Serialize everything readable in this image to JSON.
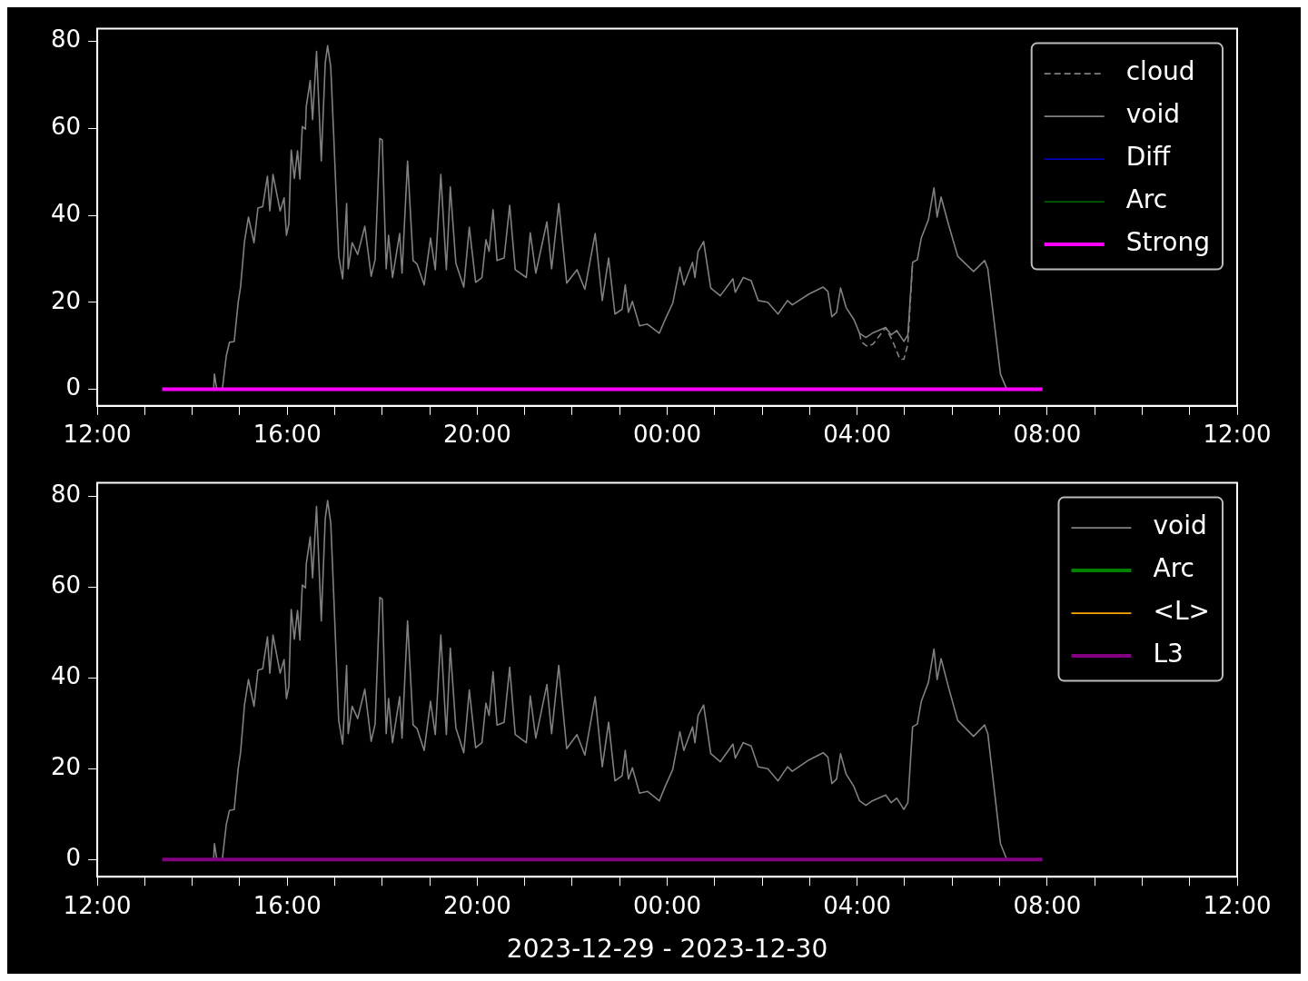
{
  "chart_data": [
    {
      "type": "line",
      "x": [
        "2023-12-29T14:27",
        "2023-12-29T14:28",
        "2023-12-29T14:31",
        "2023-12-29T14:38",
        "2023-12-29T14:43",
        "2023-12-29T14:47",
        "2023-12-29T14:53",
        "2023-12-29T14:58",
        "2023-12-29T15:01",
        "2023-12-29T15:06",
        "2023-12-29T15:11",
        "2023-12-29T15:18",
        "2023-12-29T15:23",
        "2023-12-29T15:29",
        "2023-12-29T15:35",
        "2023-12-29T15:38",
        "2023-12-29T15:42",
        "2023-12-29T15:51",
        "2023-12-29T15:56",
        "2023-12-29T15:59",
        "2023-12-29T16:02",
        "2023-12-29T16:05",
        "2023-12-29T16:09",
        "2023-12-29T16:13",
        "2023-12-29T16:16",
        "2023-12-29T16:19",
        "2023-12-29T16:23",
        "2023-12-29T16:24",
        "2023-12-29T16:29",
        "2023-12-29T16:32",
        "2023-12-29T16:37",
        "2023-12-29T16:43",
        "2023-12-29T16:48",
        "2023-12-29T16:51",
        "2023-12-29T16:55",
        "2023-12-29T16:59",
        "2023-12-29T17:05",
        "2023-12-29T17:10",
        "2023-12-29T17:15",
        "2023-12-29T17:17",
        "2023-12-29T17:22",
        "2023-12-29T17:29",
        "2023-12-29T17:38",
        "2023-12-29T17:46",
        "2023-12-29T17:51",
        "2023-12-29T17:57",
        "2023-12-29T18:00",
        "2023-12-29T18:05",
        "2023-12-29T18:08",
        "2023-12-29T18:13",
        "2023-12-29T18:22",
        "2023-12-29T18:25",
        "2023-12-29T18:32",
        "2023-12-29T18:39",
        "2023-12-29T18:44",
        "2023-12-29T18:53",
        "2023-12-29T19:01",
        "2023-12-29T19:07",
        "2023-12-29T19:14",
        "2023-12-29T19:21",
        "2023-12-29T19:26",
        "2023-12-29T19:33",
        "2023-12-29T19:43",
        "2023-12-29T19:50",
        "2023-12-29T19:58",
        "2023-12-29T20:06",
        "2023-12-29T20:11",
        "2023-12-29T20:15",
        "2023-12-29T20:20",
        "2023-12-29T20:25",
        "2023-12-29T20:34",
        "2023-12-29T20:41",
        "2023-12-29T20:48",
        "2023-12-29T21:02",
        "2023-12-29T21:07",
        "2023-12-29T21:14",
        "2023-12-29T21:28",
        "2023-12-29T21:34",
        "2023-12-29T21:43",
        "2023-12-29T21:53",
        "2023-12-29T22:06",
        "2023-12-29T22:16",
        "2023-12-29T22:29",
        "2023-12-29T22:38",
        "2023-12-29T22:46",
        "2023-12-29T22:54",
        "2023-12-29T23:03",
        "2023-12-29T23:07",
        "2023-12-29T23:11",
        "2023-12-29T23:16",
        "2023-12-29T23:25",
        "2023-12-29T23:35",
        "2023-12-29T23:50",
        "2023-12-29T23:58",
        "2023-12-30T00:07",
        "2023-12-30T00:16",
        "2023-12-30T00:21",
        "2023-12-30T00:32",
        "2023-12-30T00:35",
        "2023-12-30T00:39",
        "2023-12-30T00:46",
        "2023-12-30T00:55",
        "2023-12-30T01:07",
        "2023-12-30T01:23",
        "2023-12-30T01:26",
        "2023-12-30T01:36",
        "2023-12-30T01:46",
        "2023-12-30T01:55",
        "2023-12-30T02:07",
        "2023-12-30T02:20",
        "2023-12-30T02:32",
        "2023-12-30T02:38",
        "2023-12-30T02:59",
        "2023-12-30T03:17",
        "2023-12-30T03:23",
        "2023-12-30T03:28",
        "2023-12-30T03:34",
        "2023-12-30T03:39",
        "2023-12-30T03:46",
        "2023-12-30T03:56",
        "2023-12-30T04:03",
        "2023-12-30T04:11",
        "2023-12-30T04:19",
        "2023-12-30T04:36",
        "2023-12-30T04:43",
        "2023-12-30T04:50",
        "2023-12-30T04:59",
        "2023-12-30T05:04",
        "2023-12-30T05:10",
        "2023-12-30T05:16",
        "2023-12-30T05:21",
        "2023-12-30T05:30",
        "2023-12-30T05:37",
        "2023-12-30T05:41",
        "2023-12-30T05:46",
        "2023-12-30T05:56",
        "2023-12-30T06:07",
        "2023-12-30T06:27",
        "2023-12-30T06:41",
        "2023-12-30T06:45",
        "2023-12-30T07:01",
        "2023-12-30T07:09"
      ],
      "series": [
        {
          "name": "cloud",
          "color": "#808080",
          "line_style": "dashed",
          "x": [
            "2023-12-30T04:03",
            "2023-12-30T04:05",
            "2023-12-30T04:13",
            "2023-12-30T04:20",
            "2023-12-30T04:36",
            "2023-12-30T04:45",
            "2023-12-30T04:54",
            "2023-12-30T04:59",
            "2023-12-30T05:04",
            "2023-12-30T05:10"
          ],
          "values": [
            12.9,
            11,
            9.8,
            10.4,
            14.2,
            11,
            6.9,
            6.9,
            10.4,
            29.2
          ]
        },
        {
          "name": "void",
          "color": "#808080",
          "values": [
            0,
            3.5,
            0,
            0,
            7.7,
            10.8,
            11,
            20,
            23.5,
            34,
            39.6,
            33.7,
            41.7,
            42,
            49,
            41,
            49.4,
            41,
            44,
            35.4,
            38,
            55,
            48.5,
            54.8,
            48.3,
            60.4,
            59.8,
            65,
            71,
            62,
            77.7,
            52.5,
            75,
            79,
            74,
            57,
            30.6,
            25.4,
            42.7,
            27.7,
            33.7,
            31,
            37.5,
            26,
            29.8,
            57.7,
            57.3,
            27.7,
            35.4,
            25.7,
            35.8,
            26.7,
            52.5,
            29.6,
            28.8,
            24,
            34.8,
            27.5,
            49.4,
            27.5,
            46.5,
            29,
            23.5,
            37.3,
            24.6,
            25.7,
            34.4,
            31.7,
            41.3,
            29.6,
            30.2,
            42.3,
            27.5,
            25.7,
            36,
            26.7,
            38.5,
            27.7,
            42.7,
            24.4,
            27.5,
            23,
            35.8,
            20.4,
            30.2,
            17.3,
            18.4,
            24,
            17.7,
            20.2,
            14.6,
            15,
            12.9,
            16.3,
            19.8,
            28.1,
            24,
            29.2,
            25.7,
            31.7,
            34,
            23.3,
            21.5,
            25.4,
            22.3,
            25.7,
            25,
            20.4,
            20,
            17.3,
            20.4,
            19.4,
            21.9,
            23.5,
            22.5,
            16.7,
            17.7,
            23.3,
            18.8,
            16,
            12.9,
            11.9,
            12.9,
            14.2,
            12.5,
            13.5,
            11,
            12.5,
            29.2,
            29.8,
            34.8,
            39,
            46.3,
            39.6,
            44.2,
            37.5,
            30.6,
            27.1,
            29.6,
            27.7,
            3.5,
            0
          ]
        },
        {
          "name": "Diff",
          "color": "#0000ff",
          "values": [
            null,
            null,
            null,
            null,
            null,
            null,
            null,
            null,
            null,
            null,
            null,
            null,
            null,
            null,
            null,
            null,
            null,
            null,
            null,
            null,
            null,
            null,
            null,
            null,
            null,
            null,
            null,
            null,
            null,
            null,
            null,
            null,
            null,
            null,
            null,
            null,
            null,
            null,
            null,
            null,
            null,
            null,
            null,
            null,
            null,
            null,
            null,
            null,
            null,
            null,
            null,
            null,
            null,
            null,
            null,
            null,
            null,
            null,
            null,
            null,
            null,
            null,
            null,
            null,
            null,
            null,
            null,
            null,
            null,
            null,
            null,
            null,
            null,
            null,
            null,
            null,
            null,
            null,
            null,
            null,
            null,
            null,
            null,
            null,
            null,
            null,
            null,
            null,
            null,
            null,
            null,
            null,
            null,
            null,
            null,
            null,
            null,
            null,
            null,
            null,
            null,
            null,
            null,
            null,
            null,
            null,
            null,
            null,
            null,
            null,
            null,
            null,
            null,
            null,
            null,
            null,
            null,
            null,
            null,
            null,
            null,
            null,
            null,
            null,
            null,
            null,
            null,
            null,
            null,
            null,
            null,
            null,
            null,
            null,
            null,
            null,
            null,
            null,
            null,
            null,
            null,
            null
          ]
        },
        {
          "name": "Arc",
          "color": "#008000",
          "values": [
            null,
            null,
            null,
            null,
            null,
            null,
            null,
            null,
            null,
            null,
            null,
            null,
            null,
            null,
            null,
            null,
            null,
            null,
            null,
            null,
            null,
            null,
            null,
            null,
            null,
            null,
            null,
            null,
            null,
            null,
            null,
            null,
            null,
            null,
            null,
            null,
            null,
            null,
            null,
            null,
            null,
            null,
            null,
            null,
            null,
            null,
            null,
            null,
            null,
            null,
            null,
            null,
            null,
            null,
            null,
            null,
            null,
            null,
            null,
            null,
            null,
            null,
            null,
            null,
            null,
            null,
            null,
            null,
            null,
            null,
            null,
            null,
            null,
            null,
            null,
            null,
            null,
            null,
            null,
            null,
            null,
            null,
            null,
            null,
            null,
            null,
            null,
            null,
            null,
            null,
            null,
            null,
            null,
            null,
            null,
            null,
            null,
            null,
            null,
            null,
            null,
            null,
            null,
            null,
            null,
            null,
            null,
            null,
            null,
            null,
            null,
            null,
            null,
            null,
            null,
            null,
            null,
            null,
            null,
            null,
            null,
            null,
            null,
            null,
            null,
            null,
            null,
            null,
            null,
            null,
            null,
            null,
            null,
            null,
            null,
            null,
            null,
            null,
            null,
            null,
            null,
            null
          ]
        },
        {
          "name": "Strong",
          "color": "#ff00ff",
          "x": [
            "2023-12-29T13:22",
            "2023-12-30T07:54"
          ],
          "values": [
            0,
            0
          ]
        }
      ],
      "xlim": [
        "2023-12-29T12:00",
        "2023-12-30T12:00"
      ],
      "xticks": [
        {
          "value": "2023-12-29T12:00",
          "label": "12:00"
        },
        {
          "value": "2023-12-29T13:00",
          "label": null
        },
        {
          "value": "2023-12-29T14:00",
          "label": null
        },
        {
          "value": "2023-12-29T15:00",
          "label": null
        },
        {
          "value": "2023-12-29T16:00",
          "label": "16:00"
        },
        {
          "value": "2023-12-29T17:00",
          "label": null
        },
        {
          "value": "2023-12-29T18:00",
          "label": null
        },
        {
          "value": "2023-12-29T19:00",
          "label": null
        },
        {
          "value": "2023-12-29T20:00",
          "label": "20:00"
        },
        {
          "value": "2023-12-29T21:00",
          "label": null
        },
        {
          "value": "2023-12-29T22:00",
          "label": null
        },
        {
          "value": "2023-12-29T23:00",
          "label": null
        },
        {
          "value": "2023-12-30T00:00",
          "label": "00:00"
        },
        {
          "value": "2023-12-30T01:00",
          "label": null
        },
        {
          "value": "2023-12-30T02:00",
          "label": null
        },
        {
          "value": "2023-12-30T03:00",
          "label": null
        },
        {
          "value": "2023-12-30T04:00",
          "label": "04:00"
        },
        {
          "value": "2023-12-30T05:00",
          "label": null
        },
        {
          "value": "2023-12-30T06:00",
          "label": null
        },
        {
          "value": "2023-12-30T07:00",
          "label": null
        },
        {
          "value": "2023-12-30T08:00",
          "label": "08:00"
        },
        {
          "value": "2023-12-30T09:00",
          "label": null
        },
        {
          "value": "2023-12-30T10:00",
          "label": null
        },
        {
          "value": "2023-12-30T11:00",
          "label": null
        },
        {
          "value": "2023-12-30T12:00",
          "label": "12:00"
        }
      ],
      "ylim": [
        -3.8,
        82.9
      ],
      "yticks": [
        0,
        20,
        40,
        60,
        80
      ],
      "grid": false,
      "legend": "top right"
    },
    {
      "type": "line",
      "xlabel": "2023-12-29 - 2023-12-30",
      "x": [
        "2023-12-29T14:27",
        "2023-12-29T14:28",
        "2023-12-29T14:31",
        "2023-12-29T14:38",
        "2023-12-29T14:43",
        "2023-12-29T14:47",
        "2023-12-29T14:53",
        "2023-12-29T14:58",
        "2023-12-29T15:01",
        "2023-12-29T15:06",
        "2023-12-29T15:11",
        "2023-12-29T15:18",
        "2023-12-29T15:23",
        "2023-12-29T15:29",
        "2023-12-29T15:35",
        "2023-12-29T15:38",
        "2023-12-29T15:42",
        "2023-12-29T15:51",
        "2023-12-29T15:56",
        "2023-12-29T15:59",
        "2023-12-29T16:02",
        "2023-12-29T16:05",
        "2023-12-29T16:09",
        "2023-12-29T16:13",
        "2023-12-29T16:16",
        "2023-12-29T16:19",
        "2023-12-29T16:23",
        "2023-12-29T16:24",
        "2023-12-29T16:29",
        "2023-12-29T16:32",
        "2023-12-29T16:37",
        "2023-12-29T16:43",
        "2023-12-29T16:48",
        "2023-12-29T16:51",
        "2023-12-29T16:55",
        "2023-12-29T16:59",
        "2023-12-29T17:05",
        "2023-12-29T17:10",
        "2023-12-29T17:15",
        "2023-12-29T17:17",
        "2023-12-29T17:22",
        "2023-12-29T17:29",
        "2023-12-29T17:38",
        "2023-12-29T17:46",
        "2023-12-29T17:51",
        "2023-12-29T17:57",
        "2023-12-29T18:00",
        "2023-12-29T18:05",
        "2023-12-29T18:08",
        "2023-12-29T18:13",
        "2023-12-29T18:22",
        "2023-12-29T18:25",
        "2023-12-29T18:32",
        "2023-12-29T18:39",
        "2023-12-29T18:44",
        "2023-12-29T18:53",
        "2023-12-29T19:01",
        "2023-12-29T19:07",
        "2023-12-29T19:14",
        "2023-12-29T19:21",
        "2023-12-29T19:26",
        "2023-12-29T19:33",
        "2023-12-29T19:43",
        "2023-12-29T19:50",
        "2023-12-29T19:58",
        "2023-12-29T20:06",
        "2023-12-29T20:11",
        "2023-12-29T20:15",
        "2023-12-29T20:20",
        "2023-12-29T20:25",
        "2023-12-29T20:34",
        "2023-12-29T20:41",
        "2023-12-29T20:48",
        "2023-12-29T21:02",
        "2023-12-29T21:07",
        "2023-12-29T21:14",
        "2023-12-29T21:28",
        "2023-12-29T21:34",
        "2023-12-29T21:43",
        "2023-12-29T21:53",
        "2023-12-29T22:06",
        "2023-12-29T22:16",
        "2023-12-29T22:29",
        "2023-12-29T22:38",
        "2023-12-29T22:46",
        "2023-12-29T22:54",
        "2023-12-29T23:03",
        "2023-12-29T23:07",
        "2023-12-29T23:11",
        "2023-12-29T23:16",
        "2023-12-29T23:25",
        "2023-12-29T23:35",
        "2023-12-29T23:50",
        "2023-12-29T23:58",
        "2023-12-30T00:07",
        "2023-12-30T00:16",
        "2023-12-30T00:21",
        "2023-12-30T00:32",
        "2023-12-30T00:35",
        "2023-12-30T00:39",
        "2023-12-30T00:46",
        "2023-12-30T00:55",
        "2023-12-30T01:07",
        "2023-12-30T01:23",
        "2023-12-30T01:26",
        "2023-12-30T01:36",
        "2023-12-30T01:46",
        "2023-12-30T01:55",
        "2023-12-30T02:07",
        "2023-12-30T02:20",
        "2023-12-30T02:32",
        "2023-12-30T02:38",
        "2023-12-30T02:59",
        "2023-12-30T03:17",
        "2023-12-30T03:23",
        "2023-12-30T03:28",
        "2023-12-30T03:34",
        "2023-12-30T03:39",
        "2023-12-30T03:46",
        "2023-12-30T03:56",
        "2023-12-30T04:03",
        "2023-12-30T04:11",
        "2023-12-30T04:19",
        "2023-12-30T04:36",
        "2023-12-30T04:43",
        "2023-12-30T04:50",
        "2023-12-30T04:59",
        "2023-12-30T05:04",
        "2023-12-30T05:10",
        "2023-12-30T05:16",
        "2023-12-30T05:21",
        "2023-12-30T05:30",
        "2023-12-30T05:37",
        "2023-12-30T05:41",
        "2023-12-30T05:46",
        "2023-12-30T05:56",
        "2023-12-30T06:07",
        "2023-12-30T06:27",
        "2023-12-30T06:41",
        "2023-12-30T06:45",
        "2023-12-30T07:01",
        "2023-12-30T07:09"
      ],
      "series": [
        {
          "name": "void",
          "color": "#808080",
          "values": [
            0,
            3.5,
            0,
            0,
            7.7,
            10.8,
            11,
            20,
            23.5,
            34,
            39.6,
            33.7,
            41.7,
            42,
            49,
            41,
            49.4,
            41,
            44,
            35.4,
            38,
            55,
            48.5,
            54.8,
            48.3,
            60.4,
            59.8,
            65,
            71,
            62,
            77.7,
            52.5,
            75,
            79,
            74,
            57,
            30.6,
            25.4,
            42.7,
            27.7,
            33.7,
            31,
            37.5,
            26,
            29.8,
            57.7,
            57.3,
            27.7,
            35.4,
            25.7,
            35.8,
            26.7,
            52.5,
            29.6,
            28.8,
            24,
            34.8,
            27.5,
            49.4,
            27.5,
            46.5,
            29,
            23.5,
            37.3,
            24.6,
            25.7,
            34.4,
            31.7,
            41.3,
            29.6,
            30.2,
            42.3,
            27.5,
            25.7,
            36,
            26.7,
            38.5,
            27.7,
            42.7,
            24.4,
            27.5,
            23,
            35.8,
            20.4,
            30.2,
            17.3,
            18.4,
            24,
            17.7,
            20.2,
            14.6,
            15,
            12.9,
            16.3,
            19.8,
            28.1,
            24,
            29.2,
            25.7,
            31.7,
            34,
            23.3,
            21.5,
            25.4,
            22.3,
            25.7,
            25,
            20.4,
            20,
            17.3,
            20.4,
            19.4,
            21.9,
            23.5,
            22.5,
            16.7,
            17.7,
            23.3,
            18.8,
            16,
            12.9,
            11.9,
            12.9,
            14.2,
            12.5,
            13.5,
            11,
            12.5,
            29.2,
            29.8,
            34.8,
            39,
            46.3,
            39.6,
            44.2,
            37.5,
            30.6,
            27.1,
            29.6,
            27.7,
            3.5,
            0
          ]
        },
        {
          "name": "Arc",
          "color": "#008000",
          "values": [
            null,
            null,
            null,
            null,
            null,
            null,
            null,
            null,
            null,
            null,
            null,
            null,
            null,
            null,
            null,
            null,
            null,
            null,
            null,
            null,
            null,
            null,
            null,
            null,
            null,
            null,
            null,
            null,
            null,
            null,
            null,
            null,
            null,
            null,
            null,
            null,
            null,
            null,
            null,
            null,
            null,
            null,
            null,
            null,
            null,
            null,
            null,
            null,
            null,
            null,
            null,
            null,
            null,
            null,
            null,
            null,
            null,
            null,
            null,
            null,
            null,
            null,
            null,
            null,
            null,
            null,
            null,
            null,
            null,
            null,
            null,
            null,
            null,
            null,
            null,
            null,
            null,
            null,
            null,
            null,
            null,
            null,
            null,
            null,
            null,
            null,
            null,
            null,
            null,
            null,
            null,
            null,
            null,
            null,
            null,
            null,
            null,
            null,
            null,
            null,
            null,
            null,
            null,
            null,
            null,
            null,
            null,
            null,
            null,
            null,
            null,
            null,
            null,
            null,
            null,
            null,
            null,
            null,
            null,
            null,
            null,
            null,
            null,
            null,
            null,
            null,
            null,
            null,
            null,
            null,
            null,
            null,
            null,
            null,
            null,
            null,
            null,
            null,
            null,
            null,
            null,
            null
          ]
        },
        {
          "name": "<L>",
          "color": "#ffa500",
          "values": [
            null,
            null,
            null,
            null,
            null,
            null,
            null,
            null,
            null,
            null,
            null,
            null,
            null,
            null,
            null,
            null,
            null,
            null,
            null,
            null,
            null,
            null,
            null,
            null,
            null,
            null,
            null,
            null,
            null,
            null,
            null,
            null,
            null,
            null,
            null,
            null,
            null,
            null,
            null,
            null,
            null,
            null,
            null,
            null,
            null,
            null,
            null,
            null,
            null,
            null,
            null,
            null,
            null,
            null,
            null,
            null,
            null,
            null,
            null,
            null,
            null,
            null,
            null,
            null,
            null,
            null,
            null,
            null,
            null,
            null,
            null,
            null,
            null,
            null,
            null,
            null,
            null,
            null,
            null,
            null,
            null,
            null,
            null,
            null,
            null,
            null,
            null,
            null,
            null,
            null,
            null,
            null,
            null,
            null,
            null,
            null,
            null,
            null,
            null,
            null,
            null,
            null,
            null,
            null,
            null,
            null,
            null,
            null,
            null,
            null,
            null,
            null,
            null,
            null,
            null,
            null,
            null,
            null,
            null,
            null,
            null,
            null,
            null,
            null,
            null,
            null,
            null,
            null,
            null,
            null,
            null,
            null,
            null,
            null,
            null,
            null,
            null,
            null,
            null,
            null,
            null,
            null
          ]
        },
        {
          "name": "L3",
          "color": "#800080",
          "x": [
            "2023-12-29T13:22",
            "2023-12-30T07:54"
          ],
          "values": [
            0,
            0
          ]
        }
      ],
      "xlim": [
        "2023-12-29T12:00",
        "2023-12-30T12:00"
      ],
      "xticks": [
        {
          "value": "2023-12-29T12:00",
          "label": "12:00"
        },
        {
          "value": "2023-12-29T13:00",
          "label": null
        },
        {
          "value": "2023-12-29T14:00",
          "label": null
        },
        {
          "value": "2023-12-29T15:00",
          "label": null
        },
        {
          "value": "2023-12-29T16:00",
          "label": "16:00"
        },
        {
          "value": "2023-12-29T17:00",
          "label": null
        },
        {
          "value": "2023-12-29T18:00",
          "label": null
        },
        {
          "value": "2023-12-29T19:00",
          "label": null
        },
        {
          "value": "2023-12-29T20:00",
          "label": "20:00"
        },
        {
          "value": "2023-12-29T21:00",
          "label": null
        },
        {
          "value": "2023-12-29T22:00",
          "label": null
        },
        {
          "value": "2023-12-29T23:00",
          "label": null
        },
        {
          "value": "2023-12-30T00:00",
          "label": "00:00"
        },
        {
          "value": "2023-12-30T01:00",
          "label": null
        },
        {
          "value": "2023-12-30T02:00",
          "label": null
        },
        {
          "value": "2023-12-30T03:00",
          "label": null
        },
        {
          "value": "2023-12-30T04:00",
          "label": "04:00"
        },
        {
          "value": "2023-12-30T05:00",
          "label": null
        },
        {
          "value": "2023-12-30T06:00",
          "label": null
        },
        {
          "value": "2023-12-30T07:00",
          "label": null
        },
        {
          "value": "2023-12-30T08:00",
          "label": "08:00"
        },
        {
          "value": "2023-12-30T09:00",
          "label": null
        },
        {
          "value": "2023-12-30T10:00",
          "label": null
        },
        {
          "value": "2023-12-30T11:00",
          "label": null
        },
        {
          "value": "2023-12-30T12:00",
          "label": "12:00"
        }
      ],
      "ylim": [
        -3.8,
        82.9
      ],
      "yticks": [
        0,
        20,
        40,
        60,
        80
      ],
      "grid": false,
      "legend": "top right"
    }
  ]
}
